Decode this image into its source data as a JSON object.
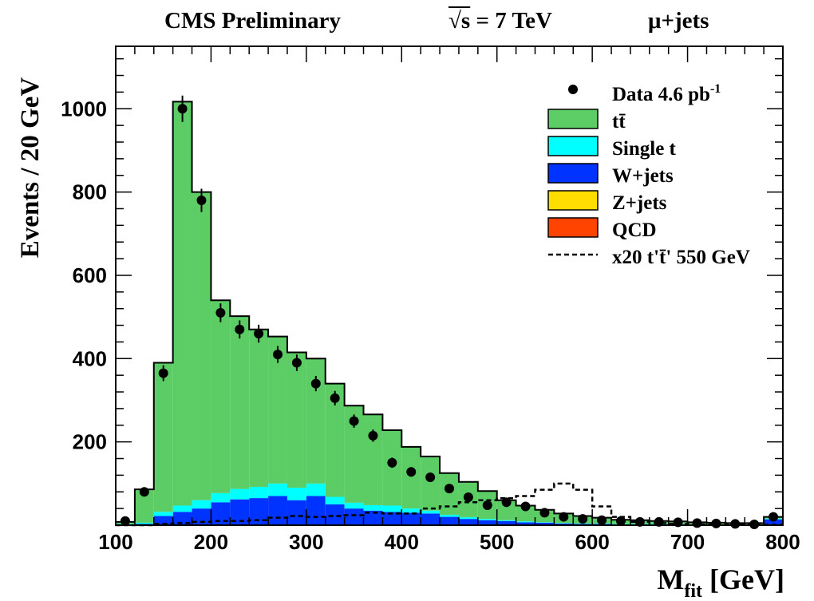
{
  "header": {
    "experiment": "CMS Preliminary",
    "energy_sqrt": "√s",
    "energy_value": " = 7 TeV",
    "channel": "μ+jets"
  },
  "colors": {
    "ttbar": "#5ccc64",
    "single_t": "#00ffff",
    "wjets": "#0033ff",
    "zjets": "#ffdd00",
    "qcd": "#ff4400",
    "data": "#000000",
    "signal": "#000000"
  },
  "chart_data": {
    "type": "bar",
    "stacked": true,
    "xlabel_main": "M",
    "xlabel_sub": "fit",
    "xlabel_unit": " [GeV]",
    "ylabel": "Events / 20 GeV",
    "xlim": [
      100,
      800
    ],
    "ylim": [
      0,
      1150
    ],
    "bin_width": 20,
    "x_ticks": [
      100,
      200,
      300,
      400,
      500,
      600,
      700,
      800
    ],
    "y_ticks": [
      200,
      400,
      600,
      800,
      1000
    ],
    "bin_edges": [
      100,
      120,
      140,
      160,
      180,
      200,
      220,
      240,
      260,
      280,
      300,
      320,
      340,
      360,
      380,
      400,
      420,
      440,
      460,
      480,
      500,
      520,
      540,
      560,
      580,
      600,
      620,
      640,
      660,
      680,
      700,
      720,
      740,
      760,
      780,
      800
    ],
    "series": [
      {
        "name": "W+jets",
        "key": "wjets",
        "values": [
          2,
          3,
          22,
          32,
          40,
          55,
          62,
          65,
          70,
          60,
          70,
          50,
          40,
          35,
          32,
          30,
          28,
          20,
          15,
          12,
          10,
          7,
          6,
          4,
          3,
          3,
          2,
          2,
          2,
          2,
          1,
          1,
          1,
          1,
          14
        ]
      },
      {
        "name": "Single t",
        "key": "single_t",
        "values": [
          1,
          3,
          10,
          15,
          20,
          22,
          25,
          27,
          30,
          30,
          30,
          18,
          14,
          13,
          15,
          10,
          7,
          5,
          4,
          3,
          2,
          2,
          1,
          1,
          1,
          1,
          1,
          1,
          1,
          1,
          1,
          1,
          1,
          1,
          2
        ]
      },
      {
        "name": "tt̄",
        "key": "ttbar",
        "values": [
          5,
          80,
          358,
          970,
          740,
          463,
          415,
          378,
          353,
          325,
          300,
          272,
          233,
          218,
          181,
          148,
          130,
          100,
          85,
          67,
          48,
          38,
          30,
          23,
          18,
          14,
          10,
          9,
          7,
          6,
          5,
          4,
          3,
          3,
          4
        ]
      }
    ],
    "signal": {
      "name": "x20 t't̄' 550 GeV",
      "values": [
        0,
        0,
        3,
        5,
        8,
        10,
        10,
        12,
        18,
        22,
        20,
        22,
        24,
        30,
        28,
        28,
        40,
        45,
        55,
        60,
        65,
        70,
        85,
        100,
        85,
        45,
        20,
        8,
        5,
        3,
        2,
        2,
        1,
        1,
        1
      ]
    },
    "data": {
      "name": "Data 4.6 pb",
      "values": [
        10,
        80,
        365,
        1000,
        780,
        510,
        470,
        460,
        410,
        390,
        340,
        305,
        250,
        215,
        150,
        128,
        115,
        88,
        67,
        48,
        55,
        45,
        30,
        20,
        15,
        12,
        10,
        8,
        8,
        7,
        5,
        4,
        3,
        2,
        20
      ]
    },
    "legend": {
      "position": "top-right",
      "entries": [
        {
          "label": "Data 4.6 pb",
          "sup": "-1",
          "kind": "marker",
          "key": "data"
        },
        {
          "label": "tt̄",
          "kind": "box",
          "key": "ttbar"
        },
        {
          "label": "Single t",
          "kind": "box",
          "key": "single_t"
        },
        {
          "label": "W+jets",
          "kind": "box",
          "key": "wjets"
        },
        {
          "label": "Z+jets",
          "kind": "box",
          "key": "zjets"
        },
        {
          "label": "QCD",
          "kind": "box",
          "key": "qcd"
        },
        {
          "label": "x20 t't̄' 550 GeV",
          "kind": "dashed",
          "key": "signal"
        }
      ]
    }
  }
}
